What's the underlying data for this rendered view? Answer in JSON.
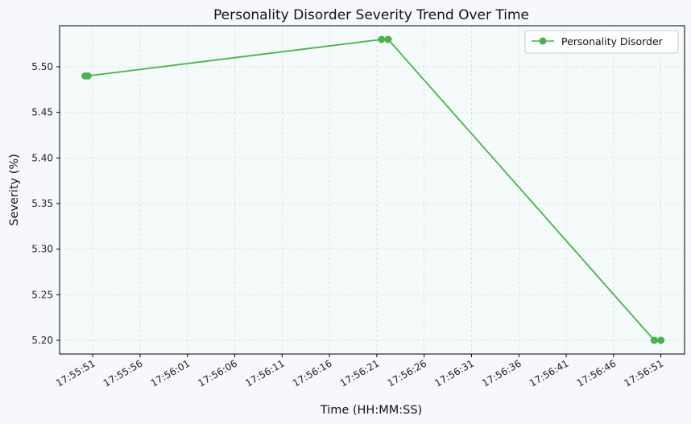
{
  "chart_data": {
    "type": "line",
    "title": "Personality Disorder Severity Trend Over Time",
    "xlabel": "Time (HH:MM:SS)",
    "ylabel": "Severity (%)",
    "x_ticks": [
      "17:55:51",
      "17:55:56",
      "17:56:01",
      "17:56:06",
      "17:56:11",
      "17:56:16",
      "17:56:21",
      "17:56:26",
      "17:56:31",
      "17:56:36",
      "17:56:41",
      "17:56:46",
      "17:56:51"
    ],
    "y_ticks": [
      "5.20",
      "5.25",
      "5.30",
      "5.35",
      "5.40",
      "5.45",
      "5.50"
    ],
    "xlim": [
      "17:55:47.5",
      "17:56:53.5"
    ],
    "ylim": [
      5.185,
      5.545
    ],
    "grid": true,
    "legend_position": "top-right",
    "series": [
      {
        "name": "Personality Disorder",
        "color": "#4caf50",
        "marker": "circle",
        "points": [
          {
            "x": "17:55:50.2",
            "y": 5.49
          },
          {
            "x": "17:55:50.5",
            "y": 5.49
          },
          {
            "x": "17:56:21.5",
            "y": 5.53
          },
          {
            "x": "17:56:22.2",
            "y": 5.53
          },
          {
            "x": "17:56:50.3",
            "y": 5.2
          },
          {
            "x": "17:56:51.0",
            "y": 5.2
          }
        ]
      }
    ]
  },
  "colors": {
    "page_background": "#f7f8fc",
    "plot_background": "#f4fbfa",
    "grid": "#c8d8cc",
    "axis": "#000000"
  }
}
